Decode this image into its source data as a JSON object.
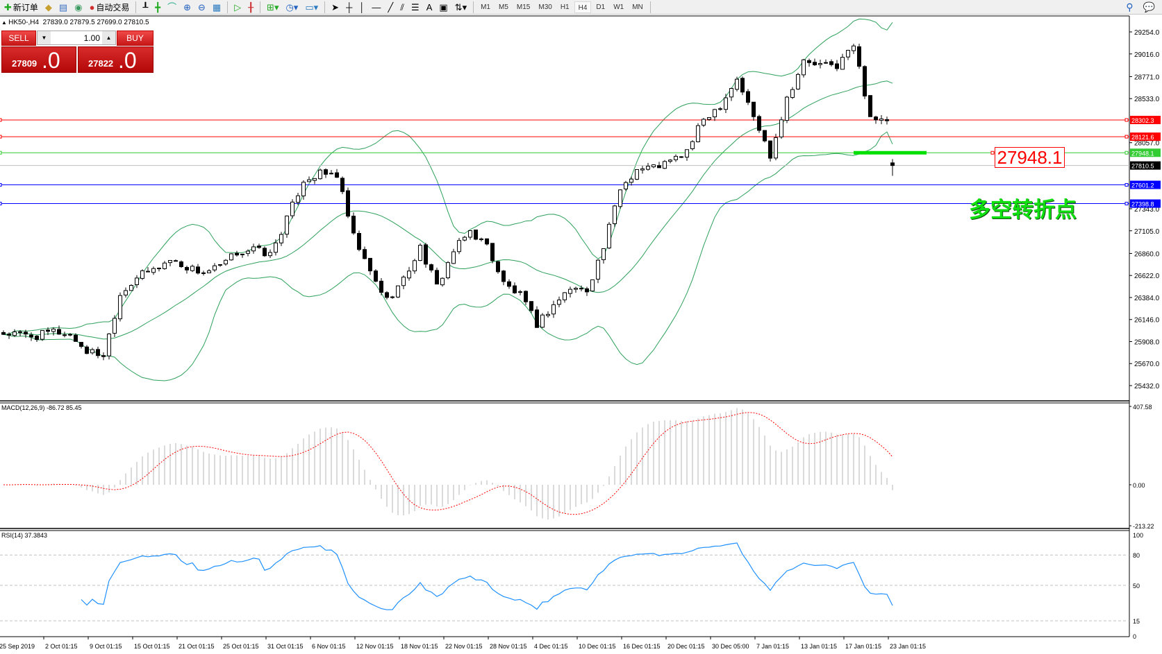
{
  "toolbar": {
    "new_order": "新订单",
    "auto_trading": "自动交易",
    "icons": [
      "new-order-icon",
      "metaeditor-icon",
      "market-watch-icon",
      "signals-icon",
      "auto-trading-icon",
      "bar-chart-icon",
      "candlestick-icon",
      "line-chart-icon",
      "zoom-in-icon",
      "zoom-out-icon",
      "tile-windows-icon",
      "chart-shift-icon",
      "autoscroll-icon",
      "indicators-icon",
      "periods-icon",
      "templates-icon",
      "cursor-icon",
      "crosshair-icon",
      "vertical-line-icon",
      "horizontal-line-icon",
      "trendline-icon",
      "equidistant-channel-icon",
      "fibonacci-icon",
      "text-icon",
      "text-label-icon",
      "arrows-icon",
      "search-icon",
      "chat-icon"
    ],
    "text_tool": "A",
    "timeframes": [
      "M1",
      "M5",
      "M15",
      "M30",
      "H1",
      "H4",
      "D1",
      "W1",
      "MN"
    ],
    "active_timeframe": "H4"
  },
  "chart": {
    "header": "HK50-,H4  27839.0 27879.5 27699.0 27810.5",
    "symbol": "HK50-",
    "period": "H4",
    "ohlc_last": {
      "open": 27839.0,
      "high": 27879.5,
      "low": 27699.0,
      "close": 27810.5
    }
  },
  "one_click": {
    "sell_label": "SELL",
    "buy_label": "BUY",
    "volume": "1.00",
    "sell_price_main": "27809",
    "sell_price_big": ".0",
    "buy_price_main": "27822",
    "buy_price_big": ".0"
  },
  "annotations": {
    "level_text": "27948.1",
    "cn_text": "多空转折点",
    "green_level": 27948.1
  },
  "colors": {
    "bull": "#ffffff",
    "bear": "#000000",
    "bands": "#2ca05a",
    "macd_hist": "#c0c0c0",
    "macd_signal": "#ff0000",
    "rsi": "#1e90ff",
    "resistance": "#ff0000",
    "support": "#0000ff",
    "pivot": "#00cc00",
    "bid": "#c0c0c0"
  },
  "horizontal_lines": [
    {
      "price": 28302.3,
      "label": "28302.3",
      "color": "#ff0000"
    },
    {
      "price": 28121.6,
      "label": "28121.6",
      "color": "#ff0000"
    },
    {
      "price": 27948.1,
      "label": "27948.1",
      "color": "#33cc33"
    },
    {
      "price": 27810.5,
      "label": "27810.5",
      "color": "#000000",
      "bid": true
    },
    {
      "price": 27601.2,
      "label": "27601.2",
      "color": "#0000ff"
    },
    {
      "price": 27398.8,
      "label": "27398.8",
      "color": "#0000ff"
    }
  ],
  "chart_data": {
    "type": "candlestick",
    "price_axis_ticks": [
      "29254.0",
      "29016.0",
      "28771.0",
      "28533.0",
      "28057.0",
      "27343.0",
      "27105.0",
      "26860.0",
      "26622.0",
      "26384.0",
      "26146.0",
      "25908.0",
      "25670.0",
      "25432.0"
    ],
    "price_range": [
      25432.0,
      29254.0
    ],
    "time_labels": [
      "25 Sep 2019",
      "2 Oct 01:15",
      "9 Oct 01:15",
      "15 Oct 01:15",
      "21 Oct 01:15",
      "25 Oct 01:15",
      "31 Oct 01:15",
      "6 Nov 01:15",
      "12 Nov 01:15",
      "18 Nov 01:15",
      "22 Nov 01:15",
      "28 Nov 01:15",
      "4 Dec 01:15",
      "10 Dec 01:15",
      "16 Dec 01:15",
      "20 Dec 01:15",
      "30 Dec 05:00",
      "7 Jan 01:15",
      "13 Jan 01:15",
      "17 Jan 01:15",
      "23 Jan 01:15"
    ],
    "approx_closes_every_3_bars": [
      25996,
      25981,
      25965,
      26019,
      25981,
      25803,
      25765,
      26421,
      26606,
      26683,
      26791,
      26714,
      26652,
      26714,
      26869,
      26907,
      26845,
      27232,
      27656,
      27718,
      27710,
      27038,
      26652,
      26359,
      26575,
      26923,
      26498,
      26884,
      27100,
      26946,
      26537,
      26405,
      26097,
      26305,
      26483,
      26467,
      26923,
      27563,
      27772,
      27795,
      27849,
      27965,
      28312,
      28467,
      28752,
      28335,
      27926,
      28544,
      28930,
      28891,
      28891,
      29107,
      28351,
      28258,
      27810.5
    ],
    "bollinger": "Bands(20,2)",
    "macd": {
      "label": "MACD(12,26,9) -86.72 85.45",
      "axis": [
        "407.58",
        "0.00",
        "-213.22"
      ],
      "range": [
        -213.22,
        407.58
      ]
    },
    "rsi": {
      "label": "RSI(14) 37.3843",
      "axis": [
        "100",
        "80",
        "50",
        "15",
        "0"
      ],
      "levels": [
        80,
        50,
        15
      ]
    }
  }
}
